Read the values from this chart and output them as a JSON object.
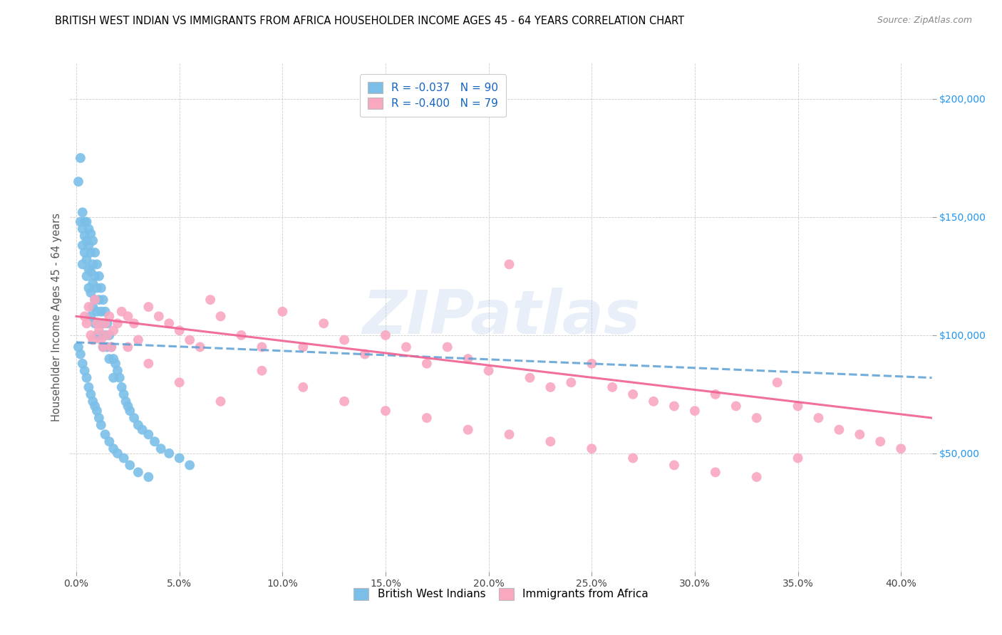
{
  "title": "BRITISH WEST INDIAN VS IMMIGRANTS FROM AFRICA HOUSEHOLDER INCOME AGES 45 - 64 YEARS CORRELATION CHART",
  "source": "Source: ZipAtlas.com",
  "ylabel": "Householder Income Ages 45 - 64 years",
  "xlabel_ticks": [
    "0.0%",
    "5.0%",
    "10.0%",
    "15.0%",
    "20.0%",
    "25.0%",
    "30.0%",
    "35.0%",
    "40.0%"
  ],
  "xlabel_vals": [
    0.0,
    0.05,
    0.1,
    0.15,
    0.2,
    0.25,
    0.3,
    0.35,
    0.4
  ],
  "ytick_labels": [
    "$50,000",
    "$100,000",
    "$150,000",
    "$200,000"
  ],
  "ytick_vals": [
    50000,
    100000,
    150000,
    200000
  ],
  "ymin": 0,
  "ymax": 215000,
  "xmin": -0.003,
  "xmax": 0.415,
  "legend1_label": "R = -0.037   N = 90",
  "legend2_label": "R = -0.400   N = 79",
  "legend_bottom_label1": "British West Indians",
  "legend_bottom_label2": "Immigrants from Africa",
  "color_blue": "#7bbfe8",
  "color_pink": "#f9a8c0",
  "color_blue_line": "#5a9fd4",
  "color_pink_line": "#f06090",
  "watermark": "ZIPatlas",
  "title_fontsize": 10.5,
  "blue_x": [
    0.001,
    0.002,
    0.002,
    0.003,
    0.003,
    0.003,
    0.003,
    0.004,
    0.004,
    0.004,
    0.005,
    0.005,
    0.005,
    0.005,
    0.006,
    0.006,
    0.006,
    0.006,
    0.007,
    0.007,
    0.007,
    0.007,
    0.007,
    0.008,
    0.008,
    0.008,
    0.008,
    0.009,
    0.009,
    0.009,
    0.009,
    0.01,
    0.01,
    0.01,
    0.01,
    0.011,
    0.011,
    0.011,
    0.012,
    0.012,
    0.012,
    0.013,
    0.013,
    0.013,
    0.014,
    0.014,
    0.015,
    0.015,
    0.016,
    0.016,
    0.017,
    0.018,
    0.018,
    0.019,
    0.02,
    0.021,
    0.022,
    0.023,
    0.024,
    0.025,
    0.026,
    0.028,
    0.03,
    0.032,
    0.035,
    0.038,
    0.041,
    0.045,
    0.05,
    0.055,
    0.001,
    0.002,
    0.003,
    0.004,
    0.005,
    0.006,
    0.007,
    0.008,
    0.009,
    0.01,
    0.011,
    0.012,
    0.014,
    0.016,
    0.018,
    0.02,
    0.023,
    0.026,
    0.03,
    0.035
  ],
  "blue_y": [
    165000,
    175000,
    148000,
    152000,
    145000,
    138000,
    130000,
    148000,
    142000,
    135000,
    148000,
    140000,
    132000,
    125000,
    145000,
    138000,
    128000,
    120000,
    143000,
    135000,
    127000,
    118000,
    108000,
    140000,
    130000,
    122000,
    112000,
    135000,
    125000,
    115000,
    105000,
    130000,
    120000,
    110000,
    100000,
    125000,
    115000,
    105000,
    120000,
    110000,
    100000,
    115000,
    105000,
    95000,
    110000,
    100000,
    105000,
    95000,
    100000,
    90000,
    95000,
    90000,
    82000,
    88000,
    85000,
    82000,
    78000,
    75000,
    72000,
    70000,
    68000,
    65000,
    62000,
    60000,
    58000,
    55000,
    52000,
    50000,
    48000,
    45000,
    95000,
    92000,
    88000,
    85000,
    82000,
    78000,
    75000,
    72000,
    70000,
    68000,
    65000,
    62000,
    58000,
    55000,
    52000,
    50000,
    48000,
    45000,
    42000,
    40000
  ],
  "pink_x": [
    0.004,
    0.005,
    0.006,
    0.007,
    0.008,
    0.009,
    0.01,
    0.011,
    0.012,
    0.013,
    0.014,
    0.015,
    0.016,
    0.017,
    0.018,
    0.02,
    0.022,
    0.025,
    0.028,
    0.03,
    0.035,
    0.04,
    0.045,
    0.05,
    0.055,
    0.06,
    0.065,
    0.07,
    0.08,
    0.09,
    0.1,
    0.11,
    0.12,
    0.13,
    0.14,
    0.15,
    0.16,
    0.17,
    0.18,
    0.19,
    0.2,
    0.21,
    0.22,
    0.23,
    0.24,
    0.25,
    0.26,
    0.27,
    0.28,
    0.29,
    0.3,
    0.31,
    0.32,
    0.33,
    0.34,
    0.35,
    0.36,
    0.37,
    0.38,
    0.39,
    0.4,
    0.025,
    0.035,
    0.05,
    0.07,
    0.09,
    0.11,
    0.13,
    0.15,
    0.17,
    0.19,
    0.21,
    0.23,
    0.25,
    0.27,
    0.29,
    0.31,
    0.33,
    0.35
  ],
  "pink_y": [
    108000,
    105000,
    112000,
    100000,
    98000,
    115000,
    105000,
    102000,
    98000,
    95000,
    105000,
    100000,
    108000,
    95000,
    102000,
    105000,
    110000,
    108000,
    105000,
    98000,
    112000,
    108000,
    105000,
    102000,
    98000,
    95000,
    115000,
    108000,
    100000,
    95000,
    110000,
    95000,
    105000,
    98000,
    92000,
    100000,
    95000,
    88000,
    95000,
    90000,
    85000,
    130000,
    82000,
    78000,
    80000,
    88000,
    78000,
    75000,
    72000,
    70000,
    68000,
    75000,
    70000,
    65000,
    80000,
    70000,
    65000,
    60000,
    58000,
    55000,
    52000,
    95000,
    88000,
    80000,
    72000,
    85000,
    78000,
    72000,
    68000,
    65000,
    60000,
    58000,
    55000,
    52000,
    48000,
    45000,
    42000,
    40000,
    48000
  ],
  "blue_trend_x": [
    0.0,
    0.415
  ],
  "blue_trend_y": [
    97000,
    82000
  ],
  "pink_trend_x": [
    0.0,
    0.415
  ],
  "pink_trend_y": [
    108000,
    65000
  ]
}
